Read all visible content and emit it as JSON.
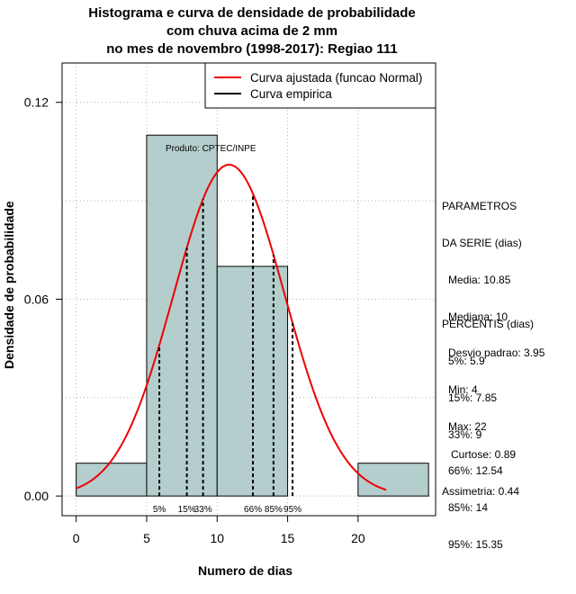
{
  "title": {
    "lines": [
      "Histograma e curva de densidade de probabilidade",
      "com chuva acima de 2 mm",
      "no mes de novembro (1998-2017): Regiao 111"
    ]
  },
  "credit": "Produto: CPTEC/INPE",
  "legend": {
    "items": [
      {
        "label": "Curva ajustada (funcao Normal)",
        "color": "#ee0000"
      },
      {
        "label": "Curva empirica",
        "color": "#000000"
      }
    ]
  },
  "parameters": {
    "heading_1": "PARAMETROS",
    "heading_2": "DA SERIE (dias)",
    "lines": [
      "Media: 10.85",
      "Mediana: 10",
      "Desvio padrao: 3.95",
      "Min: 4",
      "Max: 22"
    ]
  },
  "percentiles": {
    "heading": "PERCENTIS (dias)",
    "lines": [
      "5%: 5.9",
      "15%: 7.85",
      "33%: 9",
      "66%: 12.54",
      "85%: 14",
      "95%: 15.35"
    ]
  },
  "shape": {
    "lines": [
      "Curtose: 0.89",
      "Assimetria: 0.44"
    ]
  },
  "colors": {
    "bar_fill": "#b4cecd",
    "normal_curve": "#ee0000",
    "grid": "#b4b4b4"
  },
  "chart_data": {
    "type": "bar",
    "title": "Histograma e curva de densidade de probabilidade com chuva acima de 2 mm no mes de novembro (1998-2017): Regiao 111",
    "xlabel": "Numero de dias",
    "ylabel": "Densidade de probabilidade",
    "xlim": [
      -1,
      25.5
    ],
    "ylim": [
      -0.006,
      0.132
    ],
    "xticks": [
      0,
      5,
      10,
      15,
      20
    ],
    "yticks": [
      0.0,
      0.06,
      0.12
    ],
    "ytick_labels": [
      "0.00",
      "0.06",
      "0.12"
    ],
    "grid": true,
    "legend_position": "top-right",
    "histogram": [
      {
        "start": 0,
        "end": 5,
        "density": 0.01
      },
      {
        "start": 5,
        "end": 10,
        "density": 0.11
      },
      {
        "start": 10,
        "end": 15,
        "density": 0.07
      },
      {
        "start": 15,
        "end": 20,
        "density": 0.0
      },
      {
        "start": 20,
        "end": 25,
        "density": 0.01
      }
    ],
    "normal_fit": {
      "mean": 10.85,
      "sd": 3.95,
      "x_from": 0,
      "x_to": 22
    },
    "percentile_markers": [
      {
        "label": "5%",
        "value": 5.9
      },
      {
        "label": "15%",
        "value": 7.85
      },
      {
        "label": "33%",
        "value": 9
      },
      {
        "label": "66%",
        "value": 12.54
      },
      {
        "label": "85%",
        "value": 14
      },
      {
        "label": "95%",
        "value": 15.35
      }
    ]
  }
}
